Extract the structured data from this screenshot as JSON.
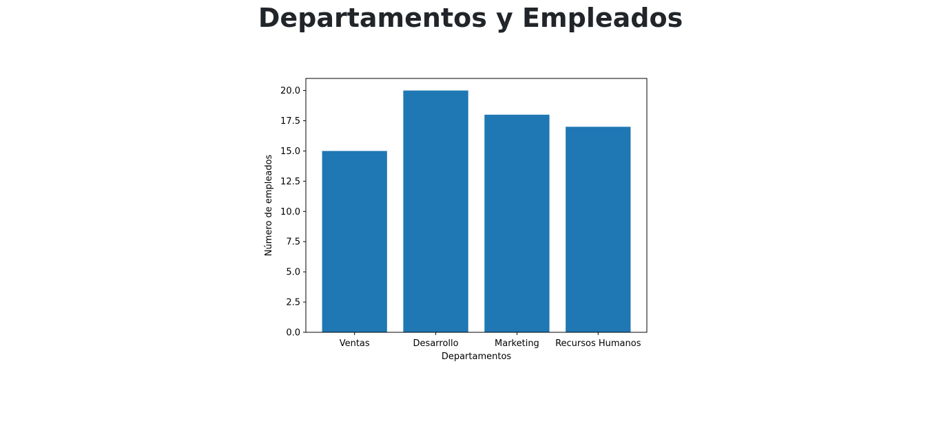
{
  "page": {
    "title": "Departamentos y Empleados"
  },
  "chart_data": {
    "type": "bar",
    "title": "",
    "xlabel": "Departamentos",
    "ylabel": "Número de empleados",
    "categories": [
      "Ventas",
      "Desarrollo",
      "Marketing",
      "Recursos Humanos"
    ],
    "values": [
      15,
      20,
      18,
      17
    ],
    "ylim": [
      0,
      21
    ],
    "yticks": [
      "0.0",
      "2.5",
      "5.0",
      "7.5",
      "10.0",
      "12.5",
      "15.0",
      "17.5",
      "20.0"
    ],
    "bar_color": "#1f77b4",
    "grid": false
  }
}
